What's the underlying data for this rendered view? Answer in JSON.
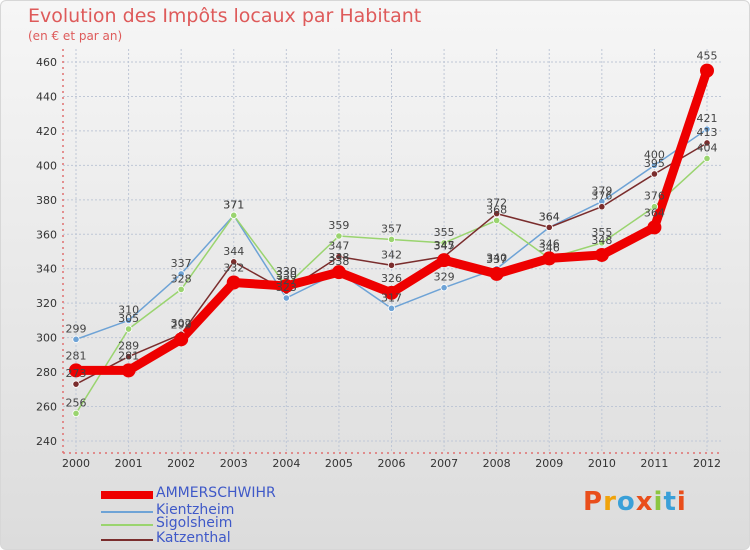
{
  "chart_data": {
    "type": "line",
    "title": "Evolution des Impôts locaux par Habitant",
    "subtitle": "(en € et par an)",
    "xlabel": "",
    "ylabel": "",
    "ylim": [
      240,
      460
    ],
    "yticks": [
      240,
      260,
      280,
      300,
      320,
      340,
      360,
      380,
      400,
      420,
      440,
      460
    ],
    "categories": [
      "2000",
      "2001",
      "2002",
      "2003",
      "2004",
      "2005",
      "2006",
      "2007",
      "2008",
      "2009",
      "2010",
      "2011",
      "2012"
    ],
    "grid": true,
    "legend_position": "bottom-left",
    "series": [
      {
        "name": "AMMERSCHWIHR",
        "color": "#ee0000",
        "values": [
          281,
          281,
          299,
          332,
          330,
          338,
          326,
          345,
          337,
          346,
          348,
          364,
          455
        ]
      },
      {
        "name": "Kientzheim",
        "color": "#6ea3d6",
        "values": [
          299,
          310,
          337,
          371,
          323,
          338,
          317,
          329,
          340,
          364,
          379,
          400,
          421
        ]
      },
      {
        "name": "Sigolsheim",
        "color": "#9ad46f",
        "values": [
          256,
          305,
          328,
          371,
          330,
          359,
          357,
          355,
          368,
          346,
          355,
          376,
          404
        ]
      },
      {
        "name": "Katzenthal",
        "color": "#7a2d2d",
        "values": [
          273,
          289,
          302,
          344,
          327,
          347,
          342,
          347,
          372,
          364,
          376,
          395,
          413
        ]
      }
    ]
  },
  "logo": {
    "text": "Proxiti",
    "colors": [
      "#e94e1b",
      "#f0a30a",
      "#3aa0d8",
      "#e94e1b",
      "#8cc63f",
      "#3aa0d8",
      "#e94e1b"
    ]
  }
}
